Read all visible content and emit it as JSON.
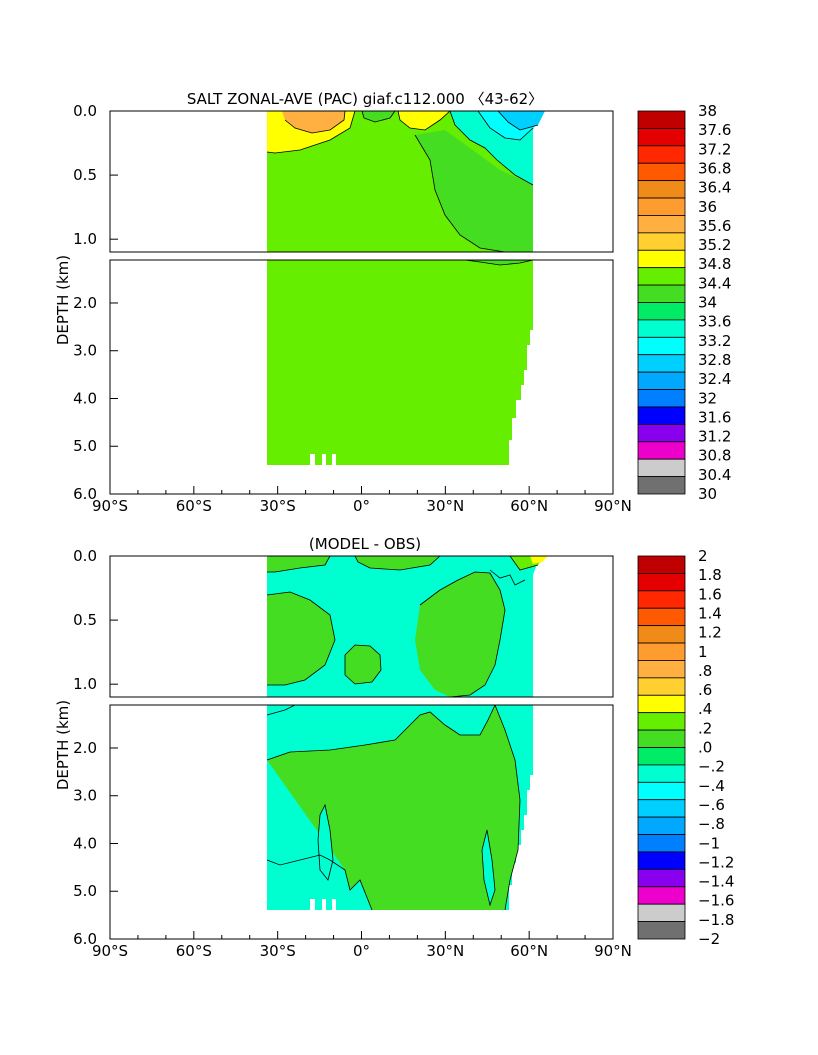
{
  "chart_data": [
    {
      "type": "heatmap",
      "title": "SALT ZONAL-AVE (PAC) giaf.c112.000 〈43-62〉",
      "ylabel": "DEPTH (km)",
      "x_ticks": [
        "90°S",
        "60°S",
        "30°S",
        "0°",
        "30°N",
        "60°N",
        "90°N"
      ],
      "x_values": [
        -90,
        -60,
        -30,
        0,
        30,
        60,
        90
      ],
      "y_ticks_upper": [
        "0.0",
        "0.5",
        "1.0"
      ],
      "y_ticks_lower": [
        "2.0",
        "3.0",
        "4.0",
        "5.0",
        "6.0"
      ],
      "depth_range_km": [
        0,
        6
      ],
      "data_extent_lat": [
        -34,
        62
      ],
      "data_bottom_km": 5.35,
      "colorbar": {
        "labels": [
          "38",
          "37.6",
          "37.2",
          "36.8",
          "36.4",
          "36",
          "35.6",
          "35.2",
          "34.8",
          "34.4",
          "34",
          "33.6",
          "33.2",
          "32.8",
          "32.4",
          "32",
          "31.6",
          "31.2",
          "30.8",
          "30.4",
          "30"
        ],
        "colors": [
          "#c00000",
          "#e40000",
          "#ff2800",
          "#ff5a00",
          "#f08a18",
          "#ff9c30",
          "#ffb040",
          "#ffd030",
          "#ffff00",
          "#66ee00",
          "#44dd22",
          "#00ec66",
          "#00ffd0",
          "#00ffff",
          "#00d0ff",
          "#00a8ff",
          "#0080ff",
          "#0000ff",
          "#8800ee",
          "#ee00cc",
          "#cccccc",
          "#707070"
        ]
      },
      "dominant_value_range": "34.4–34.8"
    },
    {
      "type": "heatmap",
      "title": "(MODEL - OBS)",
      "ylabel": "DEPTH (km)",
      "x_ticks": [
        "90°S",
        "60°S",
        "30°S",
        "0°",
        "30°N",
        "60°N",
        "90°N"
      ],
      "x_values": [
        -90,
        -60,
        -30,
        0,
        30,
        60,
        90
      ],
      "y_ticks_upper": [
        "0.0",
        "0.5",
        "1.0"
      ],
      "y_ticks_lower": [
        "2.0",
        "3.0",
        "4.0",
        "5.0",
        "6.0"
      ],
      "depth_range_km": [
        0,
        6
      ],
      "data_extent_lat": [
        -34,
        62
      ],
      "data_bottom_km": 5.35,
      "colorbar": {
        "labels": [
          "2",
          "1.8",
          "1.6",
          "1.4",
          "1.2",
          "1",
          ".8",
          ".6",
          ".4",
          ".2",
          ".0",
          "−.2",
          "−.4",
          "−.6",
          "−.8",
          "−1",
          "−1.2",
          "−1.4",
          "−1.6",
          "−1.8",
          "−2"
        ],
        "colors": [
          "#c00000",
          "#e40000",
          "#ff2800",
          "#ff5a00",
          "#f08a18",
          "#ff9c30",
          "#ffb040",
          "#ffd030",
          "#ffff00",
          "#66ee00",
          "#44dd22",
          "#00ec66",
          "#00ffd0",
          "#00ffff",
          "#00d0ff",
          "#00a8ff",
          "#0080ff",
          "#0000ff",
          "#8800ee",
          "#ee00cc",
          "#cccccc",
          "#707070"
        ]
      },
      "dominant_value_range": "−.2–.2"
    }
  ]
}
